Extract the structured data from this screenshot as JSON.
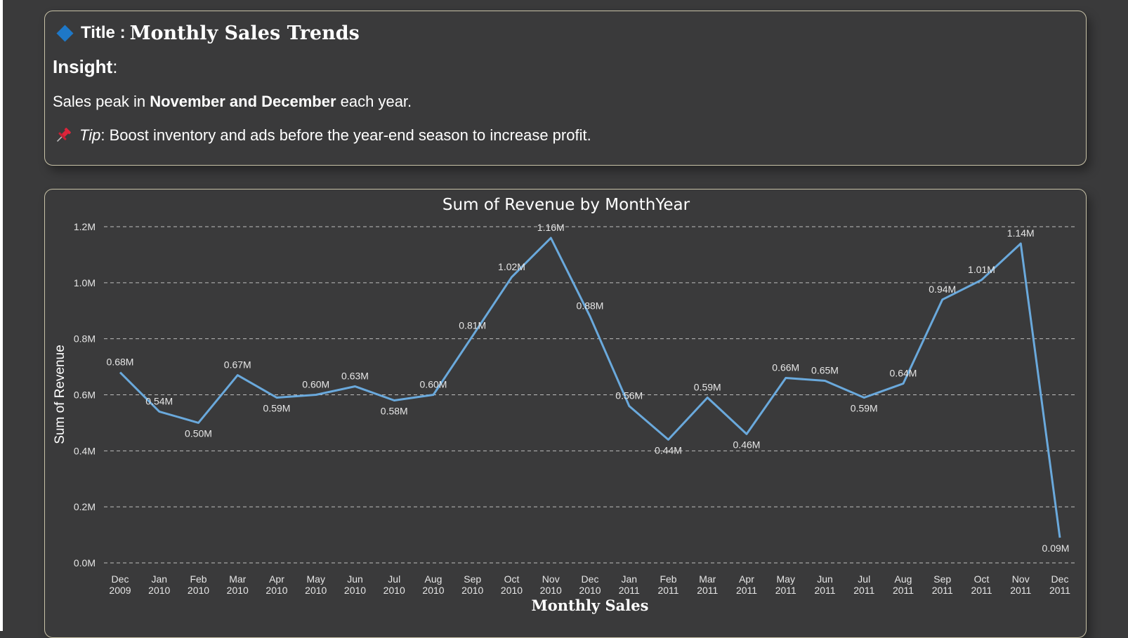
{
  "insight": {
    "title_prefix": "Title :",
    "title": "Monthly Sales Trends",
    "heading": "Insight",
    "heading_colon": ":",
    "text_before": "Sales peak in ",
    "text_bold": "November and December",
    "text_after": " each year.",
    "tip_label": "Tip",
    "tip_text": ": Boost inventory and ads before the year-end season to increase profit.",
    "accent_color": "#1e78c8",
    "pin_color": "#e0243a"
  },
  "chart_data": {
    "type": "line",
    "title": "Sum of Revenue by MonthYear",
    "xlabel": "Monthly Sales",
    "ylabel": "Sum of Revenue",
    "ylim": [
      0,
      1.2
    ],
    "yticks": [
      {
        "value": 0,
        "label": "0.0M"
      },
      {
        "value": 0.2,
        "label": "0.2M"
      },
      {
        "value": 0.4,
        "label": "0.4M"
      },
      {
        "value": 0.6,
        "label": "0.6M"
      },
      {
        "value": 0.8,
        "label": "0.8M"
      },
      {
        "value": 1.0,
        "label": "1.0M"
      },
      {
        "value": 1.2,
        "label": "1.2M"
      }
    ],
    "grid": true,
    "line_color": "#6aa9dc",
    "categories": [
      {
        "month": "Dec",
        "year": "2009"
      },
      {
        "month": "Jan",
        "year": "2010"
      },
      {
        "month": "Feb",
        "year": "2010"
      },
      {
        "month": "Mar",
        "year": "2010"
      },
      {
        "month": "Apr",
        "year": "2010"
      },
      {
        "month": "May",
        "year": "2010"
      },
      {
        "month": "Jun",
        "year": "2010"
      },
      {
        "month": "Jul",
        "year": "2010"
      },
      {
        "month": "Aug",
        "year": "2010"
      },
      {
        "month": "Sep",
        "year": "2010"
      },
      {
        "month": "Oct",
        "year": "2010"
      },
      {
        "month": "Nov",
        "year": "2010"
      },
      {
        "month": "Dec",
        "year": "2010"
      },
      {
        "month": "Jan",
        "year": "2011"
      },
      {
        "month": "Feb",
        "year": "2011"
      },
      {
        "month": "Mar",
        "year": "2011"
      },
      {
        "month": "Apr",
        "year": "2011"
      },
      {
        "month": "May",
        "year": "2011"
      },
      {
        "month": "Jun",
        "year": "2011"
      },
      {
        "month": "Jul",
        "year": "2011"
      },
      {
        "month": "Aug",
        "year": "2011"
      },
      {
        "month": "Sep",
        "year": "2011"
      },
      {
        "month": "Oct",
        "year": "2011"
      },
      {
        "month": "Nov",
        "year": "2011"
      },
      {
        "month": "Dec",
        "year": "2011"
      }
    ],
    "values": [
      0.68,
      0.54,
      0.5,
      0.67,
      0.59,
      0.6,
      0.63,
      0.58,
      0.6,
      0.81,
      1.02,
      1.16,
      0.88,
      0.56,
      0.44,
      0.59,
      0.46,
      0.66,
      0.65,
      0.59,
      0.64,
      0.94,
      1.01,
      1.14,
      0.09
    ],
    "data_labels": [
      "0.68M",
      "0.54M",
      "0.50M",
      "0.67M",
      "0.59M",
      "0.60M",
      "0.63M",
      "0.58M",
      "0.60M",
      "0.81M",
      "1.02M",
      "1.16M",
      "0.88M",
      "0.56M",
      "0.44M",
      "0.59M",
      "0.46M",
      "0.66M",
      "0.65M",
      "0.59M",
      "0.64M",
      "0.94M",
      "1.01M",
      "1.14M",
      "0.09M"
    ]
  }
}
